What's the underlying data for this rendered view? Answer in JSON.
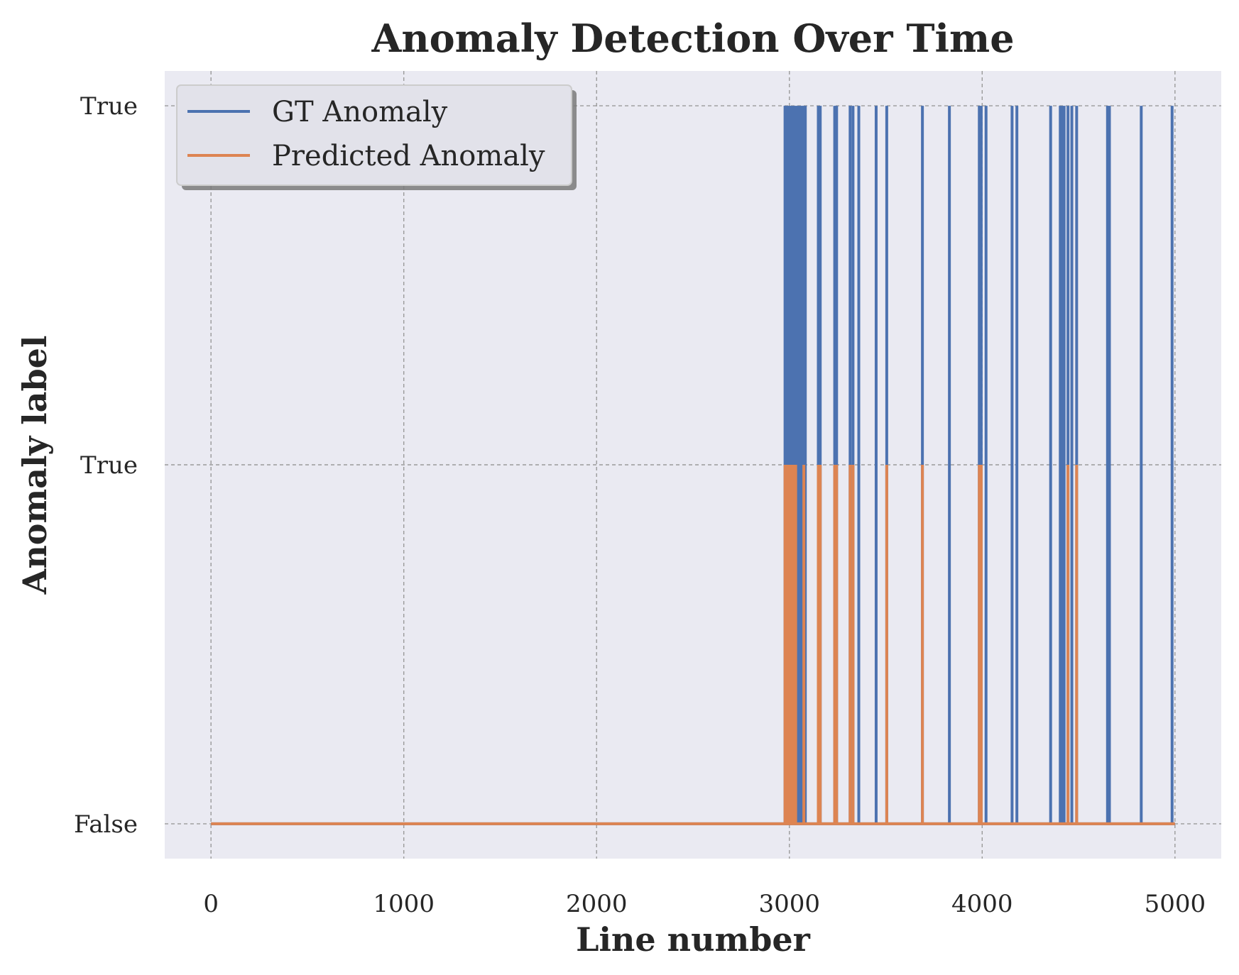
{
  "chart_data": {
    "type": "line",
    "title": "Anomaly Detection Over Time",
    "xlabel": "Line number",
    "ylabel": "Anomaly label",
    "xlim": [
      -240,
      5240
    ],
    "ylim": [
      -0.097,
      2.097
    ],
    "x_ticks": [
      0,
      1000,
      2000,
      3000,
      4000,
      5000
    ],
    "y_ticks": [
      {
        "value": 0,
        "label": "False"
      },
      {
        "value": 1,
        "label": "True"
      },
      {
        "value": 2,
        "label": "True"
      }
    ],
    "grid": true,
    "legend_position": "upper-left",
    "series": [
      {
        "name": "GT Anomaly",
        "color": "#4C72B0",
        "baseline": 0,
        "level": 2,
        "x_range": [
          0,
          5000
        ],
        "bands": [
          [
            2970,
            3090
          ]
        ],
        "pulses": [
          3150,
          3160,
          3235,
          3245,
          3315,
          3330,
          3360,
          3450,
          3505,
          3690,
          3830,
          3985,
          3995,
          4020,
          4155,
          4180,
          4355,
          4405,
          4415,
          4425,
          4445,
          4465,
          4490,
          4650,
          4660,
          4825,
          4985
        ]
      },
      {
        "name": "Predicted Anomaly",
        "color": "#DD8452",
        "baseline": 0,
        "level": 1,
        "x_range": [
          0,
          5000
        ],
        "bands": [
          [
            2970,
            3040
          ]
        ],
        "pulses": [
          3075,
          3150,
          3160,
          3235,
          3245,
          3315,
          3330,
          3505,
          3690,
          3985,
          3995,
          4445,
          4490
        ]
      }
    ]
  }
}
